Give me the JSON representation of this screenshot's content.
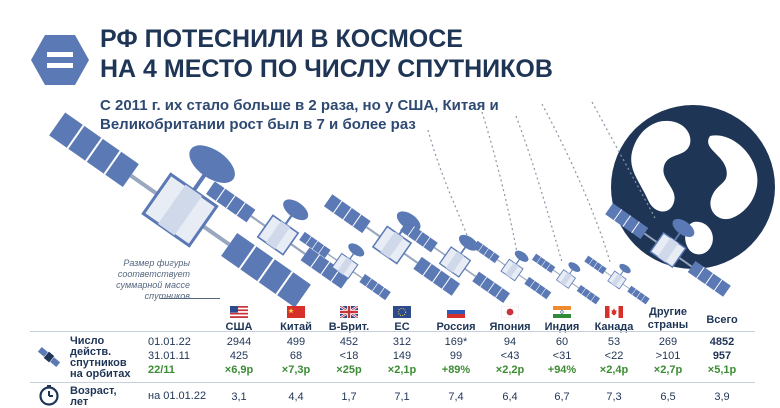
{
  "header": {
    "title_line1": "РФ ПОТЕСНИЛИ В КОСМОСЕ",
    "title_line2": "НА 4 МЕСТО ПО ЧИСЛУ СПУТНИКОВ",
    "subtitle_line1": "С 2011 г. их стало больше в 2 раза, но у США, Китая и",
    "subtitle_line2": "Великобритании рост был в 7 и более раз"
  },
  "note": "Размер фигуры соответствует суммарной массе спутников",
  "colors": {
    "navy": "#1f3556",
    "green": "#3c8c34",
    "satellite_blue": "#5b79b4",
    "light_blue": "#cfd9ea"
  },
  "row_labels": {
    "count": "Число действ. спутников на орбитах",
    "count_lines": [
      "Число",
      "действ.",
      "спутников",
      "на орбитах"
    ],
    "age": "Возраст, лет",
    "age_lines": [
      "Возраст,",
      "лет"
    ],
    "date_2022": "01.01.22",
    "date_2011": "31.01.11",
    "growth_label": "22/11",
    "age_date": "на 01.01.22"
  },
  "chart_data": {
    "type": "table",
    "title": "РФ ПОТЕСНИЛИ В КОСМОСЕ НА 4 МЕСТО ПО ЧИСЛУ СПУТНИКОВ",
    "columns": [
      {
        "name": "США",
        "flag": "us",
        "sats_2022": "2944",
        "sats_2011": "425",
        "growth": "×6,9р",
        "age": "3,1"
      },
      {
        "name": "Китай",
        "flag": "cn",
        "sats_2022": "499",
        "sats_2011": "68",
        "growth": "×7,3р",
        "age": "4,4"
      },
      {
        "name": "В-Брит.",
        "flag": "gb",
        "sats_2022": "452",
        "sats_2011": "<18",
        "growth": "×25р",
        "age": "1,7"
      },
      {
        "name": "ЕС",
        "flag": "eu",
        "sats_2022": "312",
        "sats_2011": "149",
        "growth": "×2,1р",
        "age": "7,1"
      },
      {
        "name": "Россия",
        "flag": "ru",
        "sats_2022": "169*",
        "sats_2011": "99",
        "growth": "+89%",
        "age": "7,4"
      },
      {
        "name": "Япония",
        "flag": "jp",
        "sats_2022": "94",
        "sats_2011": "<43",
        "growth": "×2,2р",
        "age": "6,4"
      },
      {
        "name": "Индия",
        "flag": "in",
        "sats_2022": "60",
        "sats_2011": "<31",
        "growth": "+94%",
        "age": "6,7"
      },
      {
        "name": "Канада",
        "flag": "ca",
        "sats_2022": "53",
        "sats_2011": "<22",
        "growth": "×2,4р",
        "age": "7,3"
      },
      {
        "name": "Другие страны",
        "flag": "",
        "sats_2022": "269",
        "sats_2011": ">101",
        "growth": "×2,7р",
        "age": "6,5"
      },
      {
        "name": "Всего",
        "flag": "",
        "sats_2022": "4852",
        "sats_2011": "957",
        "growth": "×5,1р",
        "age": "3,9"
      }
    ]
  }
}
